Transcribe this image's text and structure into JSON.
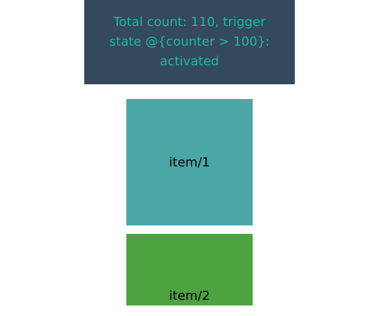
{
  "header": {
    "status_text": "Total count: 110, trigger state @{counter > 100}: activated",
    "background_color": "#34495e",
    "text_color": "#1abc9c"
  },
  "items": [
    {
      "label": "item/1",
      "color": "#4ba6a6"
    },
    {
      "label": "item/2",
      "color": "#4ca340"
    }
  ]
}
